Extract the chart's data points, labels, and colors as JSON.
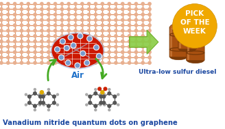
{
  "bg_color": "#ffffff",
  "title_text": "Vanadium nitride quantum dots on graphene",
  "title_color": "#1a47a0",
  "title_fontsize": 7.2,
  "air_text": "Air",
  "air_color": "#1a6ec8",
  "air_fontsize": 8.5,
  "badge_text": "PICK\nOF THE\nWEEK",
  "badge_color": "#f0a800",
  "badge_text_color": "#ffffff",
  "badge_fontsize": 7.5,
  "ulsd_text": "Ultra-low sulfur diesel",
  "ulsd_color": "#1a47a0",
  "ulsd_fontsize": 6.5,
  "graphene_color": "#e09060",
  "graphene_node_color": "#e8b090",
  "vn_color": "#cc1800",
  "vn_edge_color": "#aa1000",
  "arrow_color": "#44aa22",
  "big_arrow_color": "#88cc44",
  "big_arrow_edge": "#66aa22",
  "barrel_body": "#a85010",
  "barrel_top": "#c06820",
  "barrel_dark": "#7a3a08",
  "barrel_highlight": "#d08040"
}
